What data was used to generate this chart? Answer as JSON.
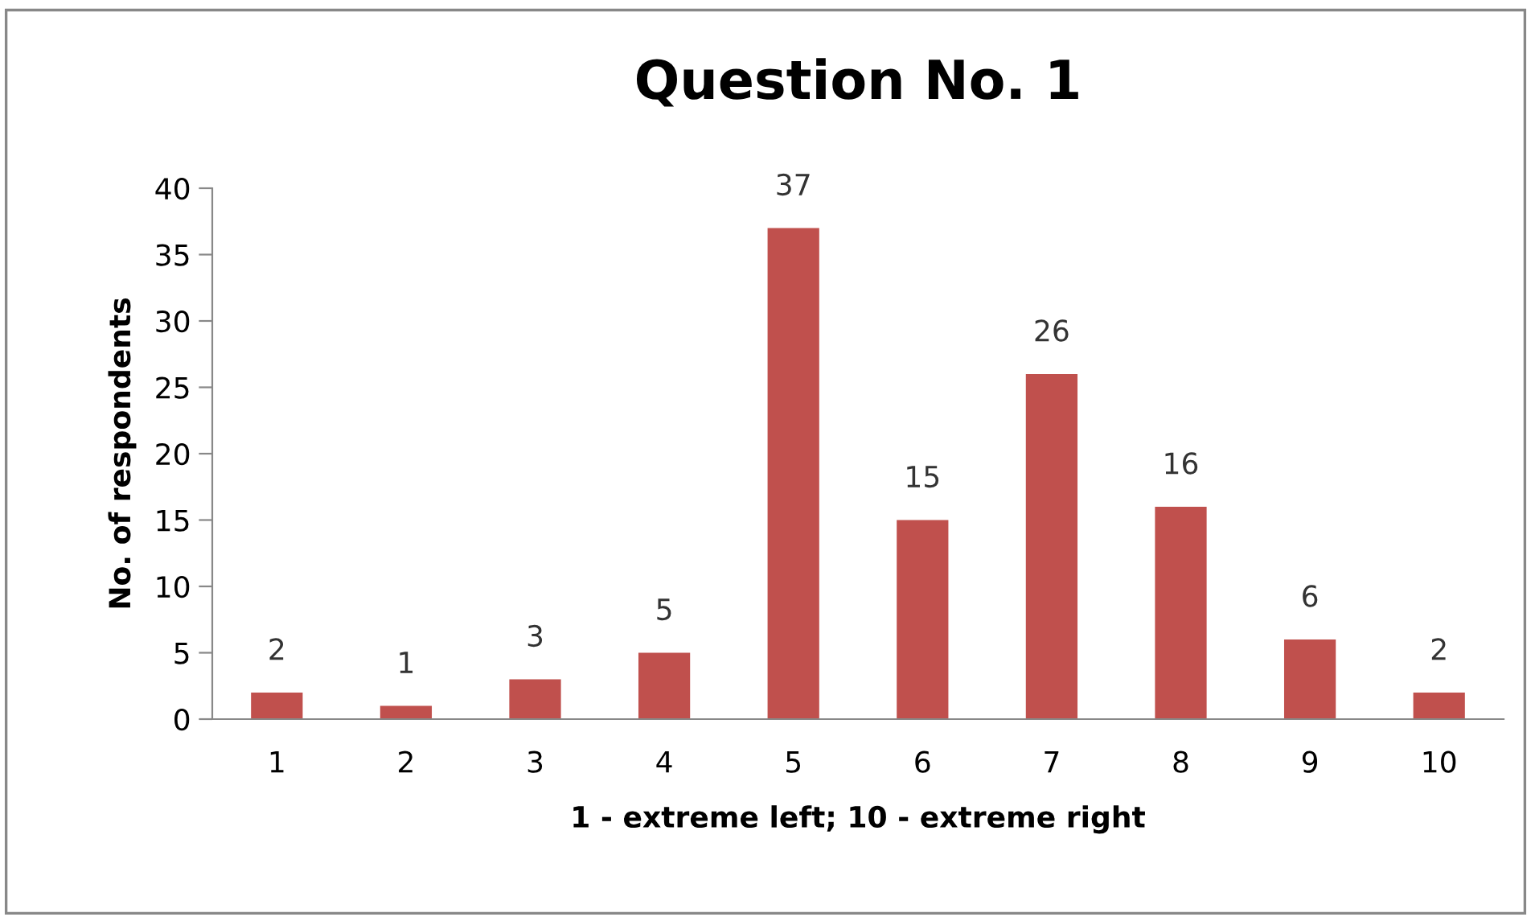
{
  "chart_data": {
    "type": "bar",
    "title": "Question No. 1",
    "xlabel": "1 - extreme left; 10 - extreme right",
    "ylabel": "No. of respondents",
    "categories": [
      "1",
      "2",
      "3",
      "4",
      "5",
      "6",
      "7",
      "8",
      "9",
      "10"
    ],
    "values": [
      2,
      1,
      3,
      5,
      37,
      15,
      26,
      16,
      6,
      2
    ],
    "color": "#c0504d",
    "ylim": [
      0,
      40
    ],
    "yticks": [
      0,
      5,
      10,
      15,
      20,
      25,
      30,
      35,
      40
    ],
    "grid": false,
    "data_labels": true,
    "legend": false
  }
}
